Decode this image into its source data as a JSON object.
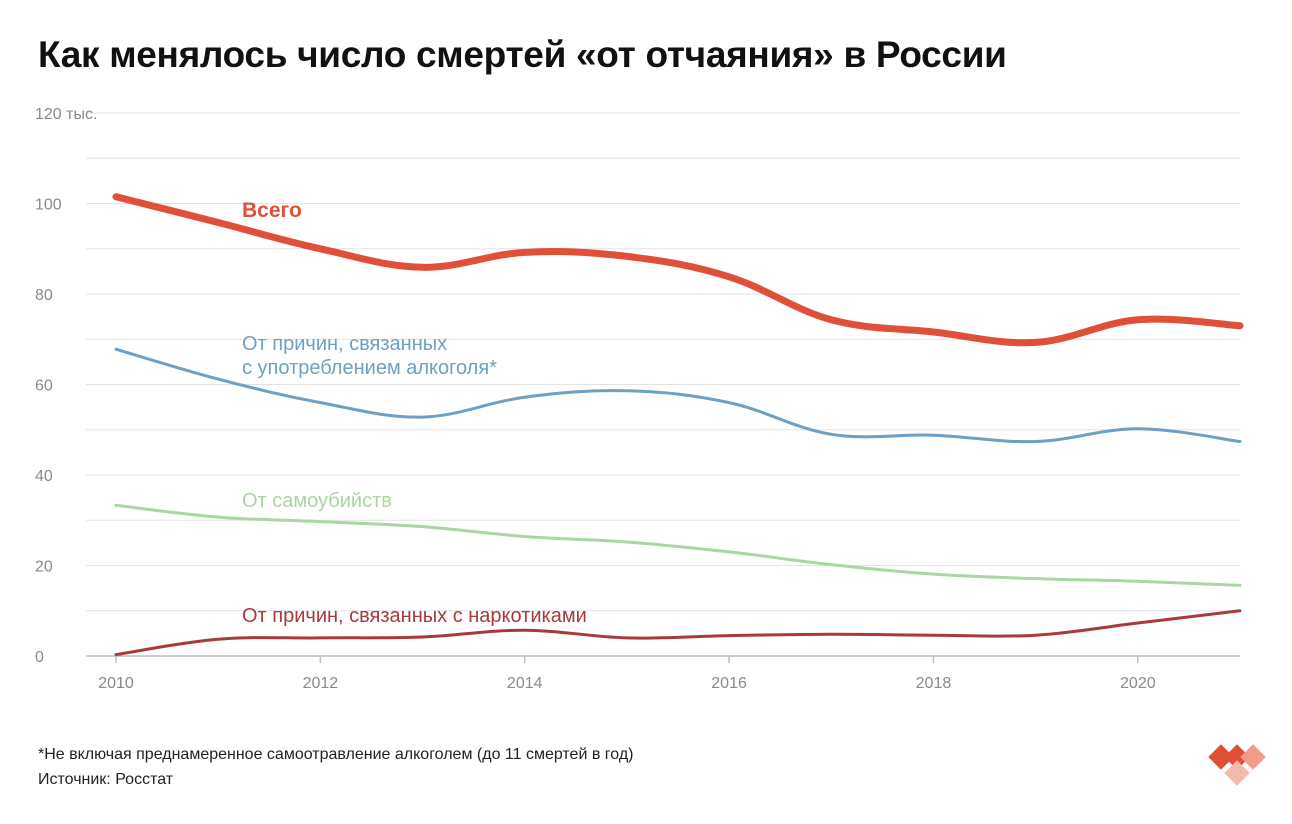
{
  "title": "Как менялось число смертей «от отчаяния» в России",
  "footnotes": {
    "note": "*Не включая преднамеренное самоотравление алкоголем (до 11 смертей в год)",
    "source": "Источник: Росстат"
  },
  "chart_data": {
    "type": "line",
    "title": "Как менялось число смертей «от отчаяния» в России",
    "x": [
      2010,
      2011,
      2012,
      2013,
      2014,
      2015,
      2016,
      2017,
      2018,
      2019,
      2020,
      2021
    ],
    "xlim": [
      2010,
      2021
    ],
    "ylim": [
      0,
      120
    ],
    "y_ticks": [
      0,
      20,
      40,
      60,
      80,
      100,
      120
    ],
    "y_tick_labels": [
      "0",
      "20",
      "40",
      "60",
      "80",
      "100",
      "120 тыс."
    ],
    "x_ticks": [
      2010,
      2012,
      2014,
      2016,
      2018,
      2020
    ],
    "x_tick_labels": [
      "2010",
      "2012",
      "2014",
      "2016",
      "2018",
      "2020"
    ],
    "grid": true,
    "series": [
      {
        "name": "Всего",
        "color": "#e05038",
        "values": [
          101.5,
          95.8,
          90.0,
          85.9,
          89.2,
          88.3,
          83.8,
          74.3,
          71.6,
          69.3,
          74.3,
          73.0
        ]
      },
      {
        "name": "От причин, связанных с употреблением алкоголя*",
        "label_lines": [
          "От причин, связанных",
          "с употреблением алкоголя*"
        ],
        "color": "#6e9fc4",
        "values": [
          67.8,
          61.2,
          56.0,
          52.8,
          57.2,
          58.6,
          56.0,
          49.0,
          48.8,
          47.4,
          50.2,
          47.4
        ]
      },
      {
        "name": "От самоубийств",
        "color": "#a9d6a2",
        "values": [
          33.3,
          30.7,
          29.7,
          28.6,
          26.4,
          25.2,
          23.0,
          20.2,
          18.1,
          17.1,
          16.5,
          15.6
        ]
      },
      {
        "name": "От причин, связанных с наркотиками",
        "color": "#a83a3a",
        "values": [
          0.3,
          3.7,
          4.0,
          4.2,
          5.7,
          4.0,
          4.5,
          4.8,
          4.6,
          4.6,
          7.3,
          10.0
        ]
      }
    ]
  }
}
